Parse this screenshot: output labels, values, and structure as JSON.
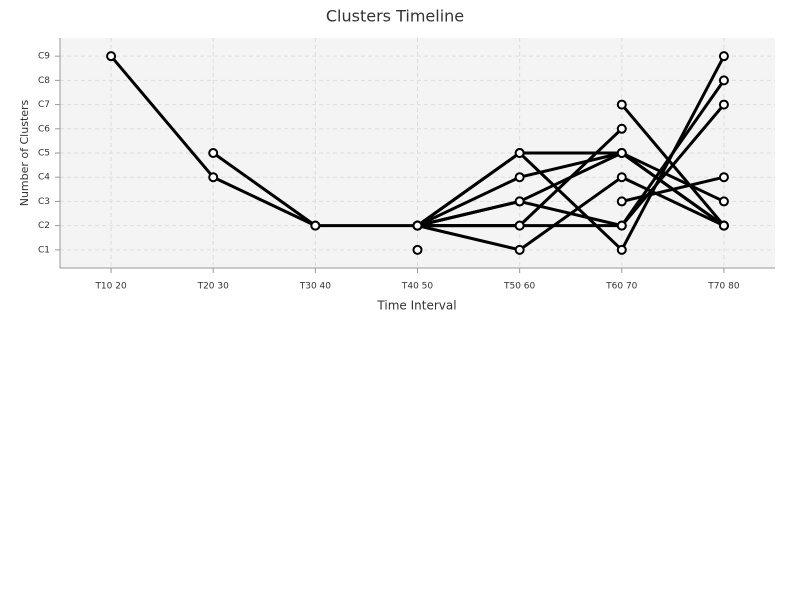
{
  "chart_data": {
    "type": "line",
    "title": "Clusters Timeline",
    "x_label": "Time Interval",
    "y_label": "Number of Clusters",
    "categories": [
      "T10 20",
      "T20 30",
      "T30 40",
      "T40 50",
      "T50 60",
      "T60 70",
      "T70 80"
    ],
    "ylim": [
      0.25,
      9.75
    ],
    "yticks": [
      {
        "value": 1,
        "label": "C1"
      },
      {
        "value": 2,
        "label": "C2"
      },
      {
        "value": 3,
        "label": "C3"
      },
      {
        "value": 4,
        "label": "C4"
      },
      {
        "value": 5,
        "label": "C5"
      },
      {
        "value": 6,
        "label": "C6"
      },
      {
        "value": 7,
        "label": "C7"
      },
      {
        "value": 8,
        "label": "C8"
      },
      {
        "value": 9,
        "label": "C9"
      }
    ],
    "grid": true,
    "series": [
      {
        "color": "#000000",
        "values": [
          9,
          4,
          2,
          2,
          2,
          2,
          8
        ]
      },
      {
        "color": "#000000",
        "values": [
          null,
          5,
          2,
          null,
          null,
          null,
          null
        ]
      },
      {
        "color": "#000000",
        "values": [
          null,
          null,
          null,
          1,
          null,
          null,
          null
        ]
      },
      {
        "color": "#000000",
        "values": [
          null,
          null,
          null,
          2,
          5,
          1,
          9
        ]
      },
      {
        "color": "#000000",
        "values": [
          null,
          null,
          null,
          2,
          4,
          5,
          2
        ]
      },
      {
        "color": "#000000",
        "values": [
          null,
          null,
          null,
          2,
          3,
          5,
          3
        ]
      },
      {
        "color": "#000000",
        "values": [
          null,
          null,
          null,
          2,
          3,
          2,
          7
        ]
      },
      {
        "color": "#000000",
        "values": [
          null,
          null,
          null,
          2,
          2,
          6,
          null
        ]
      },
      {
        "color": "#000000",
        "values": [
          null,
          null,
          null,
          2,
          1,
          4,
          2
        ]
      },
      {
        "color": "#000000",
        "values": [
          null,
          null,
          null,
          null,
          null,
          7,
          2
        ]
      },
      {
        "color": "#000000",
        "values": [
          null,
          null,
          null,
          null,
          null,
          3,
          4
        ]
      },
      {
        "color": "#000000",
        "values": [
          null,
          null,
          null,
          2,
          5,
          5,
          2
        ]
      }
    ]
  }
}
